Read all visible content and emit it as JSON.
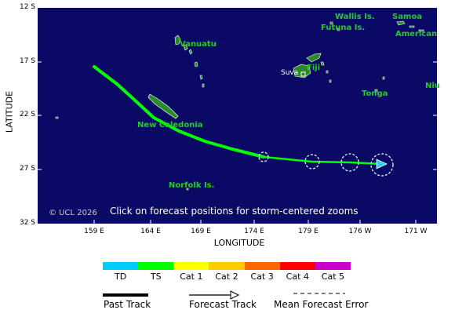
{
  "map": {
    "lat_labels": [
      "12 S",
      "17 S",
      "22 S",
      "27 S",
      "32 S"
    ],
    "lon_labels": [
      "159 E",
      "164 E",
      "169 E",
      "174 E",
      "179 E",
      "176 W",
      "171 W"
    ],
    "x_axis_title": "LONGITUDE",
    "y_axis_title": "LATITUDE",
    "copyright": "© UCL 2026",
    "note": "Click on forecast positions for storm-centered zooms",
    "places": {
      "wallis": "Wallis Is.",
      "futuna": "Futuna Is.",
      "samoa": "Samoa",
      "american": "American",
      "vanuatu": "Vanuatu",
      "fiji": "Fiji",
      "suva": "Suva",
      "niue": "Niu",
      "tonga": "Tonga",
      "new_caledonia": "New Caledonia",
      "norfolk": "Norfolk Is."
    },
    "colors": {
      "ocean": "#0a0a66",
      "land": "#2a8a2a",
      "track_ts": "#00ff00",
      "forecast_arrow": "#33ccff"
    }
  },
  "legend": {
    "categories": [
      {
        "label": "TD",
        "color": "#00ccff"
      },
      {
        "label": "TS",
        "color": "#00ff00"
      },
      {
        "label": "Cat 1",
        "color": "#ffff00"
      },
      {
        "label": "Cat 2",
        "color": "#ffcc00"
      },
      {
        "label": "Cat 3",
        "color": "#ff6600"
      },
      {
        "label": "Cat 4",
        "color": "#ff0000"
      },
      {
        "label": "Cat 5",
        "color": "#cc00cc"
      }
    ],
    "past_track": "Past Track",
    "forecast_track": "Forecast Track",
    "mean_error": "Mean Forecast Error"
  }
}
